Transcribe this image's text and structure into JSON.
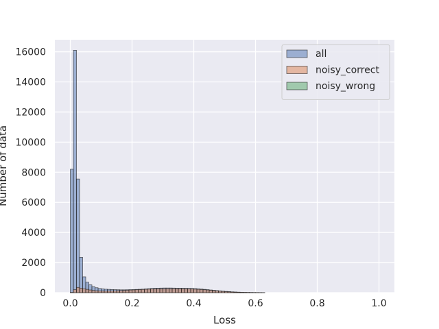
{
  "chart_data": {
    "type": "histogram",
    "title": "",
    "xlabel": "Loss",
    "ylabel": "Number of data",
    "xlim": [
      -0.05,
      1.05
    ],
    "ylim": [
      0,
      16800
    ],
    "xticks": [
      "0.0",
      "0.2",
      "0.4",
      "0.6",
      "0.8",
      "1.0"
    ],
    "yticks": [
      "0",
      "2000",
      "4000",
      "6000",
      "8000",
      "10000",
      "12000",
      "14000",
      "16000"
    ],
    "grid": true,
    "legend_position": "top-right",
    "bin_start": 0.0,
    "bin_width": 0.01,
    "colors": {
      "background": "#eaeaf2",
      "grid": "#ffffff",
      "edge": "#1f1f1f"
    },
    "series": [
      {
        "name": "all",
        "color": "#4c72b0",
        "values": [
          8200,
          16100,
          7550,
          2350,
          1050,
          700,
          520,
          400,
          330,
          280,
          250,
          230,
          220,
          210,
          200,
          195,
          190,
          190,
          195,
          200,
          205,
          215,
          225,
          235,
          250,
          265,
          280,
          295,
          300,
          305,
          310,
          310,
          310,
          305,
          300,
          300,
          295,
          290,
          285,
          280,
          270,
          255,
          240,
          220,
          200,
          180,
          160,
          140,
          120,
          100,
          85,
          70,
          55,
          45,
          35,
          28,
          22,
          18,
          14,
          11,
          9,
          7,
          5
        ]
      },
      {
        "name": "noisy_correct",
        "color": "#dd8452",
        "values": [
          20,
          200,
          350,
          300,
          260,
          220,
          180,
          150,
          130,
          120,
          110,
          105,
          110,
          115,
          120,
          130,
          140,
          150,
          160,
          175,
          185,
          195,
          205,
          215,
          225,
          235,
          245,
          250,
          255,
          260,
          262,
          265,
          265,
          265,
          262,
          260,
          258,
          255,
          250,
          245,
          235,
          225,
          210,
          195,
          180,
          160,
          140,
          120,
          100,
          85,
          70,
          58,
          46,
          36,
          28,
          22,
          17,
          13,
          10,
          8,
          6,
          5,
          4
        ]
      },
      {
        "name": "noisy_wrong",
        "color": "#55a868",
        "values": [
          0,
          0,
          0,
          0,
          0,
          0,
          0,
          0,
          0,
          0,
          0,
          0,
          0,
          0,
          0,
          0,
          0,
          0,
          0,
          0,
          0,
          0,
          0,
          0,
          0,
          0,
          0,
          0,
          0,
          0,
          0,
          0,
          0,
          0,
          0,
          0,
          0,
          0,
          0,
          0,
          0,
          0,
          0,
          0,
          0,
          0,
          0,
          0,
          0,
          0,
          0,
          0,
          0,
          0,
          0,
          0,
          0,
          0,
          0,
          0,
          0,
          0,
          0
        ]
      }
    ]
  }
}
